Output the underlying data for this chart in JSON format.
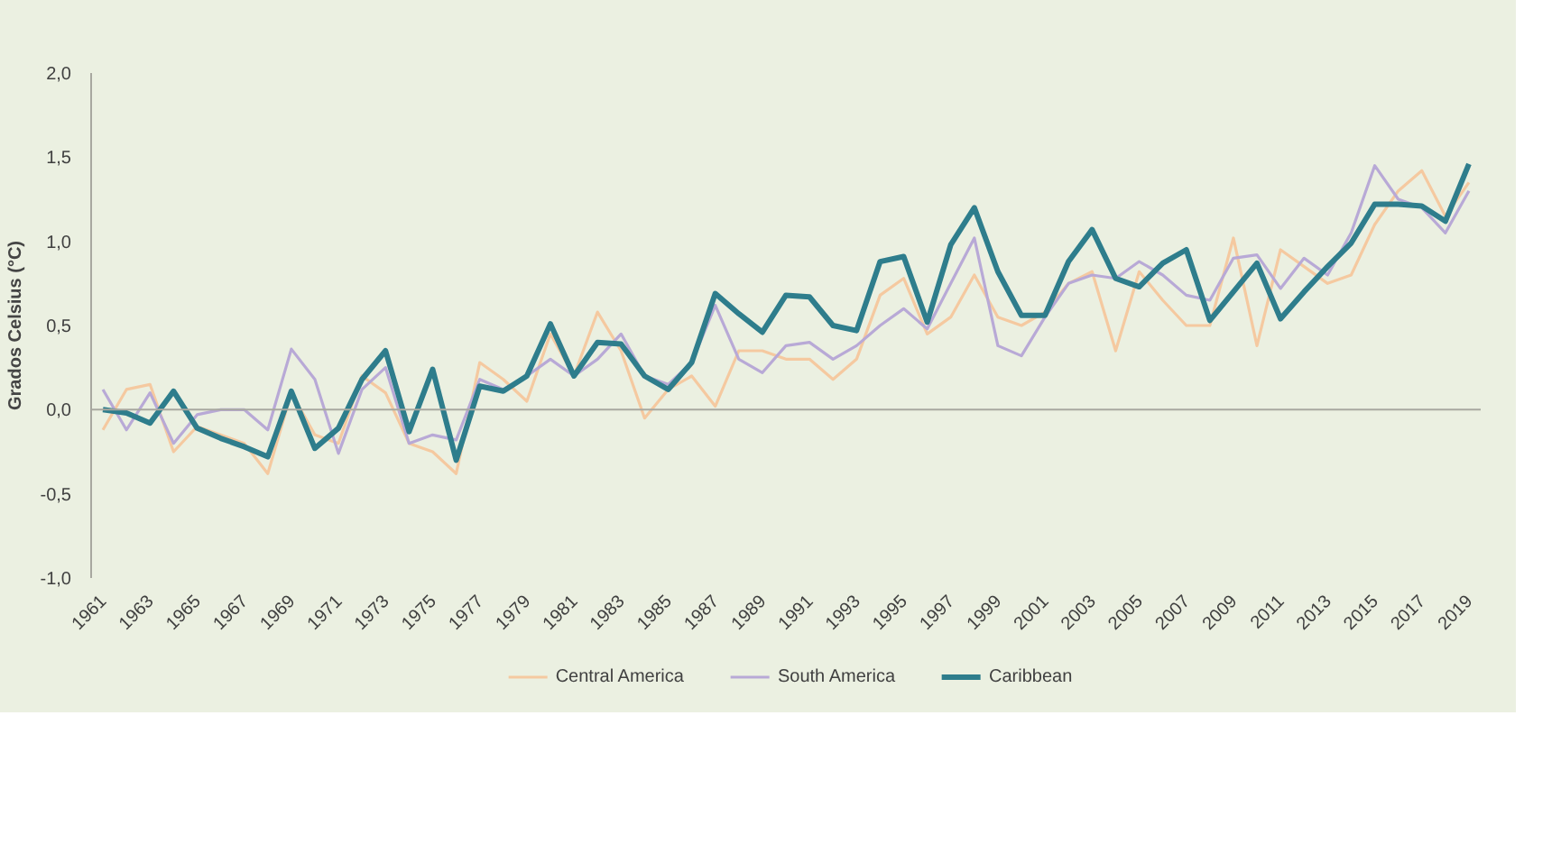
{
  "chart_data": {
    "type": "line",
    "ylabel": "Grados Celsius (°C)",
    "categories": [
      "1961",
      null,
      "1963",
      null,
      "1965",
      null,
      "1967",
      null,
      "1969",
      null,
      "1971",
      null,
      "1973",
      null,
      "1975",
      null,
      "1977",
      null,
      "1979",
      null,
      "1981",
      null,
      "1983",
      null,
      "1985",
      null,
      "1987",
      null,
      "1989",
      null,
      "1991",
      null,
      "1993",
      null,
      "1995",
      null,
      "1997",
      null,
      "1999",
      null,
      "2001",
      null,
      "2003",
      null,
      "2005",
      null,
      "2007",
      null,
      "2009",
      null,
      "2011",
      null,
      "2013",
      null,
      "2015",
      null,
      "2017",
      null,
      "2019"
    ],
    "series": [
      {
        "name": "Central America",
        "color": "#f5c9a0",
        "values": [
          -0.12,
          0.12,
          0.15,
          -0.25,
          -0.1,
          -0.15,
          -0.2,
          -0.38,
          0.1,
          -0.15,
          -0.2,
          0.2,
          0.1,
          -0.2,
          -0.25,
          -0.38,
          0.28,
          0.18,
          0.05,
          0.45,
          0.2,
          0.58,
          0.35,
          -0.05,
          0.12,
          0.2,
          0.02,
          0.35,
          0.35,
          0.3,
          0.3,
          0.18,
          0.3,
          0.68,
          0.78,
          0.45,
          0.55,
          0.8,
          0.55,
          0.5,
          0.58,
          0.75,
          0.82,
          0.35,
          0.82,
          0.65,
          0.5,
          0.5,
          1.02,
          0.38,
          0.95,
          0.85,
          0.75,
          0.8,
          1.1,
          1.3,
          1.42,
          1.15,
          1.35
        ]
      },
      {
        "name": "South America",
        "color": "#b8a9d6",
        "values": [
          0.12,
          -0.12,
          0.1,
          -0.2,
          -0.03,
          0.0,
          0.0,
          -0.12,
          0.36,
          0.18,
          -0.26,
          0.12,
          0.25,
          -0.2,
          -0.15,
          -0.18,
          0.18,
          0.12,
          0.2,
          0.3,
          0.2,
          0.3,
          0.45,
          0.2,
          0.15,
          0.28,
          0.62,
          0.3,
          0.22,
          0.38,
          0.4,
          0.3,
          0.38,
          0.5,
          0.6,
          0.48,
          0.75,
          1.02,
          0.38,
          0.32,
          0.55,
          0.75,
          0.8,
          0.78,
          0.88,
          0.8,
          0.68,
          0.65,
          0.9,
          0.92,
          0.72,
          0.9,
          0.8,
          1.05,
          1.45,
          1.25,
          1.2,
          1.05,
          1.3
        ]
      },
      {
        "name": "Caribbean",
        "color": "#2e7d8c",
        "values": [
          0.0,
          -0.02,
          -0.08,
          0.11,
          -0.11,
          -0.17,
          -0.22,
          -0.28,
          0.11,
          -0.23,
          -0.11,
          0.18,
          0.35,
          -0.13,
          0.24,
          -0.3,
          0.14,
          0.11,
          0.2,
          0.51,
          0.2,
          0.4,
          0.39,
          0.2,
          0.12,
          0.28,
          0.69,
          0.57,
          0.46,
          0.68,
          0.67,
          0.5,
          0.47,
          0.88,
          0.91,
          0.52,
          0.98,
          1.2,
          0.82,
          0.56,
          0.56,
          0.88,
          1.07,
          0.78,
          0.73,
          0.87,
          0.95,
          0.53,
          0.7,
          0.87,
          0.54,
          0.7,
          0.85,
          0.99,
          1.22,
          1.22,
          1.21,
          1.12,
          1.46
        ]
      }
    ],
    "ylim": [
      -1,
      2
    ],
    "yticks": [
      {
        "value": -1,
        "label": "-1,0"
      },
      {
        "value": -0.5,
        "label": "-0,5"
      },
      {
        "value": 0,
        "label": "0,0"
      },
      {
        "value": 0.5,
        "label": "0,5"
      },
      {
        "value": 1,
        "label": "1,0"
      },
      {
        "value": 1.5,
        "label": "1,5"
      },
      {
        "value": 2,
        "label": "2,0"
      }
    ],
    "ref_lines": [
      {
        "axis": "y",
        "value": 0,
        "color": "#a8a8a0"
      }
    ],
    "grid": false,
    "legend": "bottom",
    "marker": "none",
    "line_style": "solid"
  }
}
